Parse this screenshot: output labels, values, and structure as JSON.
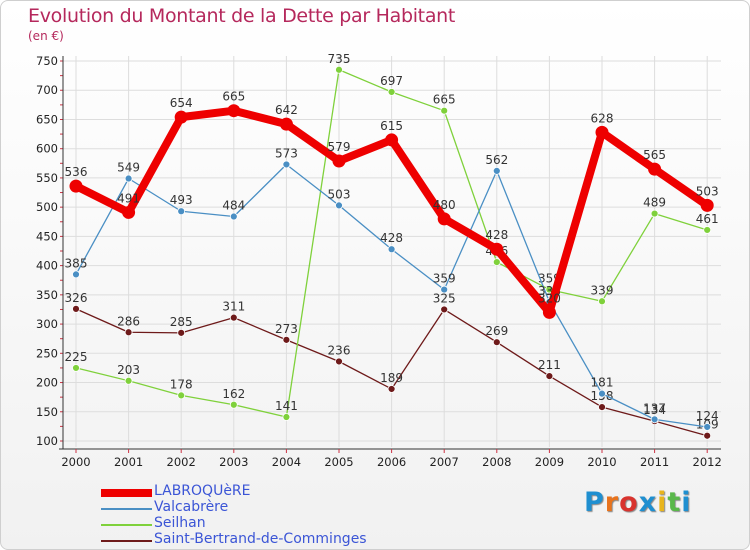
{
  "header": {
    "title": "Evolution du Montant de la Dette par Habitant",
    "unit": "(en €)"
  },
  "brand": {
    "text": "Proxiti",
    "colors": [
      "#1f8fd0",
      "#e8731d",
      "#d8332e",
      "#1f8fd0",
      "#e8b41d",
      "#59b84a",
      "#1f8fd0"
    ]
  },
  "chart_data": {
    "type": "line",
    "title": "Evolution du Montant de la Dette par Habitant",
    "subtitle": "(en €)",
    "xlabel": "",
    "ylabel": "",
    "x": [
      "2000",
      "2001",
      "2002",
      "2003",
      "2004",
      "2005",
      "2006",
      "2007",
      "2008",
      "2009",
      "2010",
      "2011",
      "2012"
    ],
    "ylim": [
      100,
      750
    ],
    "yticks": [
      100,
      150,
      200,
      250,
      300,
      350,
      400,
      450,
      500,
      550,
      600,
      650,
      700,
      750
    ],
    "grid": true,
    "legend_position": "bottom-left",
    "series": [
      {
        "name": "Saint-Bertrand-de-Comminges",
        "color": "#6e1a1a",
        "width": "thin",
        "values": [
          326,
          286,
          285,
          311,
          273,
          236,
          189,
          325,
          269,
          211,
          158,
          134,
          109
        ],
        "labels": [
          "326",
          "286",
          "285",
          "311",
          "273",
          "236",
          "189",
          "325",
          "269",
          "211",
          "158",
          "134",
          "109"
        ]
      },
      {
        "name": "Seilhan",
        "color": "#7fd13b",
        "width": "thin",
        "values": [
          225,
          203,
          178,
          162,
          141,
          735,
          697,
          665,
          406,
          359,
          339,
          489,
          461
        ],
        "labels": [
          "225",
          "203",
          "178",
          "162",
          "141",
          "735",
          "697",
          "665",
          "406",
          "359",
          "339",
          "489",
          "461"
        ]
      },
      {
        "name": "Valcabrère",
        "color": "#4a8fc4",
        "width": "thin",
        "values": [
          385,
          549,
          493,
          484,
          573,
          503,
          428,
          359,
          562,
          338,
          181,
          137,
          124
        ],
        "labels": [
          "385",
          "549",
          "493",
          "484",
          "573",
          "503",
          "428",
          "359",
          "562",
          "338",
          "181",
          "137",
          "124"
        ]
      },
      {
        "name": "LABROQUèRE",
        "color": "#ee0000",
        "width": "thick",
        "values": [
          536,
          491,
          654,
          665,
          642,
          579,
          615,
          480,
          428,
          320,
          628,
          565,
          503
        ],
        "labels": [
          "536",
          "491",
          "654",
          "665",
          "642",
          "579",
          "615",
          "480",
          "428",
          "320",
          "628",
          "565",
          "503"
        ]
      }
    ],
    "legend": [
      "LABROQUèRE",
      "Valcabrère",
      "Seilhan",
      "Saint-Bertrand-de-Comminges"
    ]
  }
}
